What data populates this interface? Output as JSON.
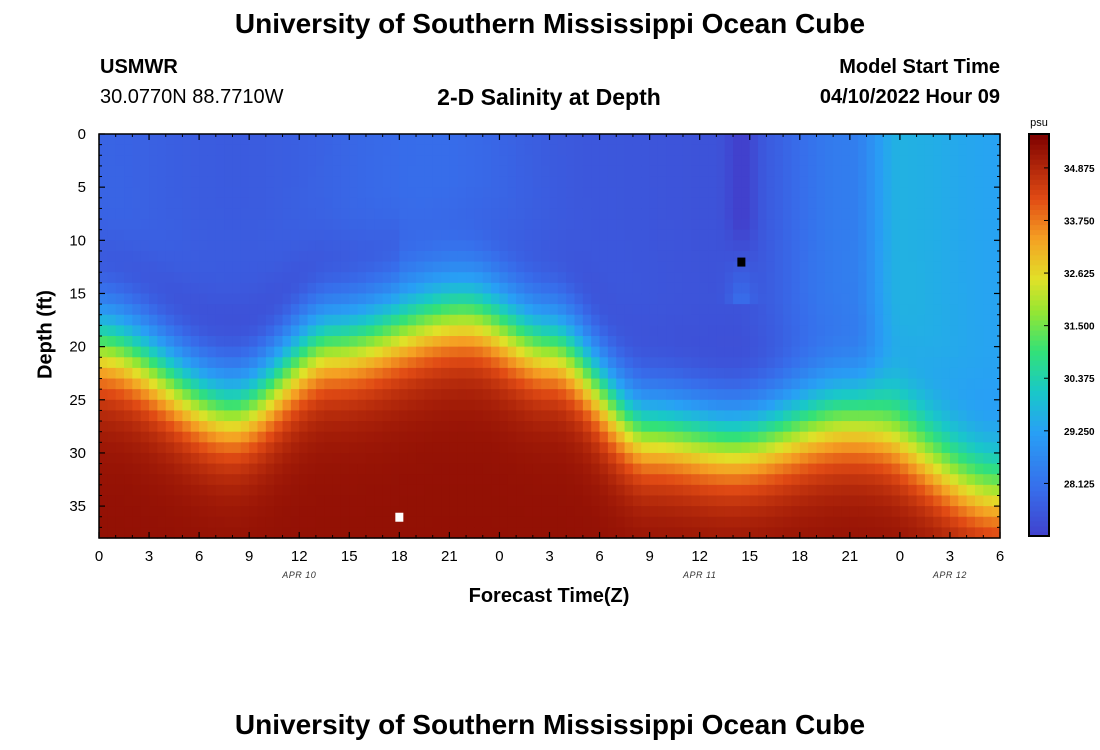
{
  "header": {
    "title": "University of Southern Mississippi Ocean Cube",
    "station": "USMWR",
    "coords": "30.0770N  88.7710W",
    "subtitle": "2-D Salinity at Depth",
    "model_start_label": "Model Start Time",
    "model_start_value": "04/10/2022 Hour 09"
  },
  "footer": {
    "title": "University of Southern Mississippi Ocean Cube"
  },
  "colorbar": {
    "unit": "psu",
    "ticks": [
      34.875,
      33.75,
      32.625,
      31.5,
      30.375,
      29.25,
      28.125
    ],
    "tick_labels": [
      "34.875",
      "33.750",
      "32.625",
      "31.500",
      "30.375",
      "29.250",
      "28.125"
    ],
    "vmin": 27.0,
    "vmax": 35.6
  },
  "chart_data": {
    "type": "heatmap",
    "title": "2-D Salinity at Depth",
    "xlabel": "Forecast Time(Z)",
    "ylabel": "Depth (ft)",
    "x_hours_range": [
      0,
      54
    ],
    "x_ticks": [
      0,
      3,
      6,
      9,
      12,
      15,
      18,
      21,
      24,
      27,
      30,
      33,
      36,
      39,
      42,
      45,
      48,
      51,
      54
    ],
    "x_tick_labels": [
      "0",
      "3",
      "6",
      "9",
      "12",
      "15",
      "18",
      "21",
      "0",
      "3",
      "6",
      "9",
      "12",
      "15",
      "18",
      "21",
      "0",
      "3",
      "6"
    ],
    "date_labels": [
      {
        "text": "APR 10",
        "hour": 12
      },
      {
        "text": "APR 11",
        "hour": 36
      },
      {
        "text": "APR 12",
        "hour": 51
      }
    ],
    "ylim": [
      0,
      38
    ],
    "y_ticks": [
      0,
      5,
      10,
      15,
      20,
      25,
      30,
      35
    ],
    "y_tick_labels": [
      "0",
      "5",
      "10",
      "15",
      "20",
      "25",
      "30",
      "35"
    ],
    "halocline_depth_ft": [
      {
        "hour": 0,
        "depth": 20
      },
      {
        "hour": 8,
        "depth": 26
      },
      {
        "hour": 14,
        "depth": 20
      },
      {
        "hour": 22,
        "depth": 17
      },
      {
        "hour": 27,
        "depth": 20
      },
      {
        "hour": 33,
        "depth": 28
      },
      {
        "hour": 38,
        "depth": 29
      },
      {
        "hour": 45,
        "depth": 27
      },
      {
        "hour": 54,
        "depth": 34
      }
    ],
    "surface_salinity_psu": [
      {
        "hour": 0,
        "value": 27.8
      },
      {
        "hour": 8,
        "value": 27.6
      },
      {
        "hour": 20,
        "value": 28.0
      },
      {
        "hour": 30,
        "value": 27.5
      },
      {
        "hour": 38,
        "value": 27.4
      },
      {
        "hour": 45,
        "value": 28.4
      },
      {
        "hour": 48,
        "value": 29.6
      },
      {
        "hour": 54,
        "value": 29.3
      }
    ],
    "bottom_salinity_psu": 35.3,
    "low_salinity_column": {
      "hour": 38.5,
      "min_value": 26.9,
      "to_depth_ft": 14
    },
    "markers": [
      {
        "hour": 18,
        "depth": 36,
        "color": "#ffffff"
      },
      {
        "hour": 38.5,
        "depth": 12,
        "color": "#000000"
      }
    ]
  }
}
